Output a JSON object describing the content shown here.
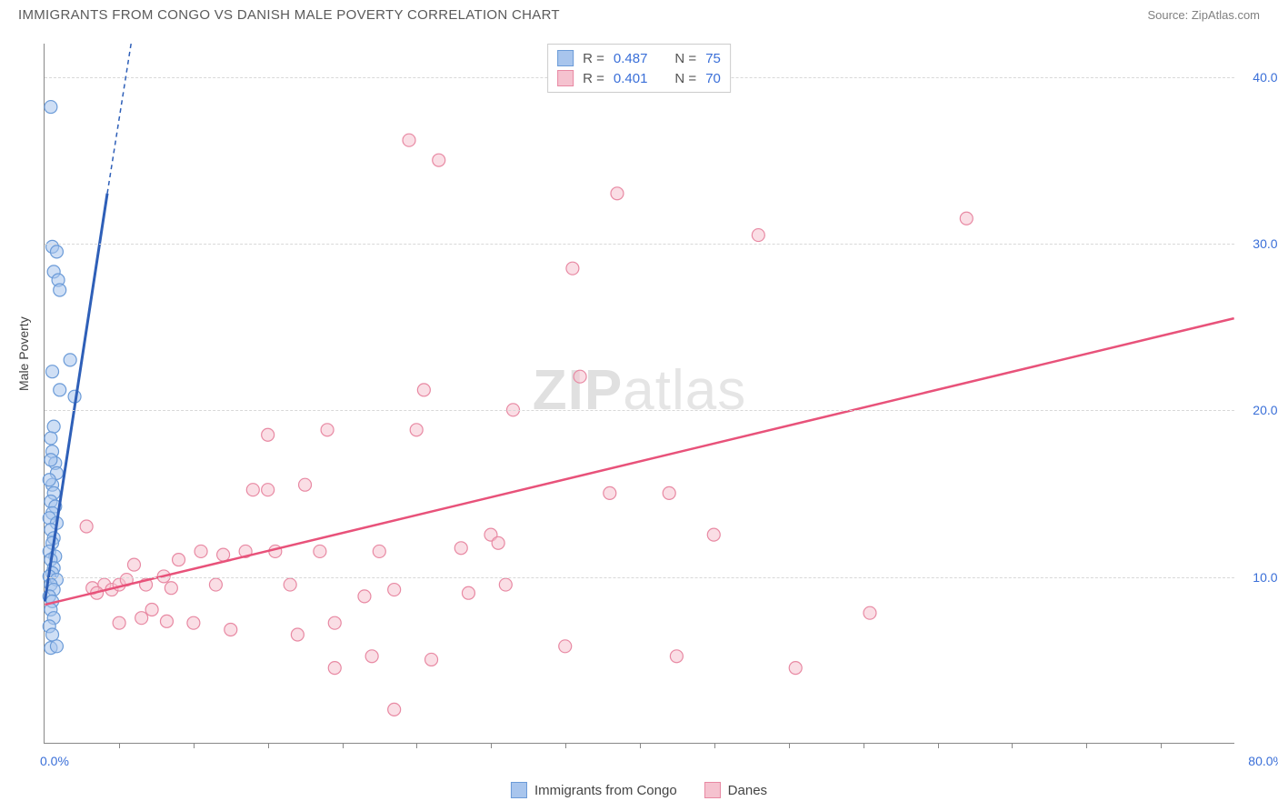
{
  "header": {
    "title": "IMMIGRANTS FROM CONGO VS DANISH MALE POVERTY CORRELATION CHART",
    "source": "Source: ZipAtlas.com"
  },
  "watermark": {
    "zip": "ZIP",
    "atlas": "atlas"
  },
  "ylabel": "Male Poverty",
  "legend_bottom": {
    "series1": "Immigrants from Congo",
    "series2": "Danes"
  },
  "stats": {
    "r_label": "R =",
    "n_label": "N =",
    "series1": {
      "r": "0.487",
      "n": "75"
    },
    "series2": {
      "r": "0.401",
      "n": "70"
    }
  },
  "axes": {
    "xlim": [
      0,
      80
    ],
    "ylim": [
      0,
      42
    ],
    "yticks": [
      10,
      20,
      30,
      40
    ],
    "yticklabels": [
      "10.0%",
      "20.0%",
      "30.0%",
      "40.0%"
    ],
    "xticklabels": {
      "low": "0.0%",
      "high": "80.0%"
    },
    "xtick_marks": [
      5,
      10,
      15,
      20,
      25,
      30,
      35,
      40,
      45,
      50,
      55,
      60,
      65,
      70,
      75
    ]
  },
  "colors": {
    "series1_fill": "#a8c5ed",
    "series1_stroke": "#6b9bd8",
    "series1_line": "#2e5fb8",
    "series2_fill": "#f5c2cf",
    "series2_stroke": "#e889a3",
    "series2_line": "#e8527a",
    "grid": "#d8d8d8",
    "tick_text": "#3a6fd8"
  },
  "marker_radius": 7,
  "series1_line_seg": {
    "x1": 0,
    "y1": 8.5,
    "x2": 4.2,
    "y2": 33
  },
  "series1_line_dash": {
    "x1": 4.2,
    "y1": 33,
    "x2": 5.8,
    "y2": 42
  },
  "series2_line_seg": {
    "x1": 0,
    "y1": 8.3,
    "x2": 80,
    "y2": 25.5
  },
  "series1_points": [
    [
      0.4,
      38.2
    ],
    [
      0.5,
      29.8
    ],
    [
      0.8,
      29.5
    ],
    [
      0.6,
      28.3
    ],
    [
      0.9,
      27.8
    ],
    [
      1.0,
      27.2
    ],
    [
      1.7,
      23.0
    ],
    [
      0.5,
      22.3
    ],
    [
      1.0,
      21.2
    ],
    [
      2.0,
      20.8
    ],
    [
      0.6,
      19.0
    ],
    [
      0.4,
      18.3
    ],
    [
      0.5,
      17.5
    ],
    [
      0.7,
      16.8
    ],
    [
      0.4,
      17.0
    ],
    [
      0.8,
      16.2
    ],
    [
      0.5,
      15.5
    ],
    [
      0.3,
      15.8
    ],
    [
      0.6,
      15.0
    ],
    [
      0.4,
      14.5
    ],
    [
      0.7,
      14.2
    ],
    [
      0.5,
      13.8
    ],
    [
      0.3,
      13.5
    ],
    [
      0.8,
      13.2
    ],
    [
      0.4,
      12.8
    ],
    [
      0.6,
      12.3
    ],
    [
      0.5,
      12.0
    ],
    [
      0.3,
      11.5
    ],
    [
      0.7,
      11.2
    ],
    [
      0.4,
      11.0
    ],
    [
      0.6,
      10.5
    ],
    [
      0.5,
      10.2
    ],
    [
      0.3,
      10.0
    ],
    [
      0.8,
      9.8
    ],
    [
      0.4,
      9.5
    ],
    [
      0.6,
      9.2
    ],
    [
      0.3,
      8.8
    ],
    [
      0.5,
      8.5
    ],
    [
      0.4,
      8.0
    ],
    [
      0.6,
      7.5
    ],
    [
      0.3,
      7.0
    ],
    [
      0.5,
      6.5
    ],
    [
      0.4,
      5.7
    ],
    [
      0.8,
      5.8
    ]
  ],
  "series2_points": [
    [
      3.2,
      9.3
    ],
    [
      4.0,
      9.5
    ],
    [
      4.5,
      9.2
    ],
    [
      2.8,
      13.0
    ],
    [
      3.5,
      9.0
    ],
    [
      5.0,
      9.5
    ],
    [
      5.5,
      9.8
    ],
    [
      6.0,
      10.7
    ],
    [
      5.0,
      7.2
    ],
    [
      6.5,
      7.5
    ],
    [
      7.2,
      8.0
    ],
    [
      6.8,
      9.5
    ],
    [
      8.0,
      10.0
    ],
    [
      8.5,
      9.3
    ],
    [
      9.0,
      11.0
    ],
    [
      10.5,
      11.5
    ],
    [
      8.2,
      7.3
    ],
    [
      10.0,
      7.2
    ],
    [
      11.5,
      9.5
    ],
    [
      12.0,
      11.3
    ],
    [
      12.5,
      6.8
    ],
    [
      13.5,
      11.5
    ],
    [
      14.0,
      15.2
    ],
    [
      15.0,
      18.5
    ],
    [
      15.0,
      15.2
    ],
    [
      15.5,
      11.5
    ],
    [
      16.5,
      9.5
    ],
    [
      17.0,
      6.5
    ],
    [
      17.5,
      15.5
    ],
    [
      18.5,
      11.5
    ],
    [
      19.0,
      18.8
    ],
    [
      19.5,
      4.5
    ],
    [
      19.5,
      7.2
    ],
    [
      21.5,
      8.8
    ],
    [
      22.0,
      5.2
    ],
    [
      22.5,
      11.5
    ],
    [
      23.5,
      2.0
    ],
    [
      23.5,
      9.2
    ],
    [
      24.5,
      36.2
    ],
    [
      25.0,
      18.8
    ],
    [
      25.5,
      21.2
    ],
    [
      26.0,
      5.0
    ],
    [
      26.5,
      35.0
    ],
    [
      28.0,
      11.7
    ],
    [
      28.5,
      9.0
    ],
    [
      30.0,
      12.5
    ],
    [
      30.5,
      12.0
    ],
    [
      31.0,
      9.5
    ],
    [
      31.5,
      20.0
    ],
    [
      35.0,
      5.8
    ],
    [
      35.5,
      28.5
    ],
    [
      36.0,
      22.0
    ],
    [
      38.0,
      15.0
    ],
    [
      38.5,
      33.0
    ],
    [
      42.0,
      15.0
    ],
    [
      42.5,
      5.2
    ],
    [
      45.0,
      12.5
    ],
    [
      48.0,
      30.5
    ],
    [
      50.5,
      4.5
    ],
    [
      55.5,
      7.8
    ],
    [
      62.0,
      31.5
    ]
  ]
}
